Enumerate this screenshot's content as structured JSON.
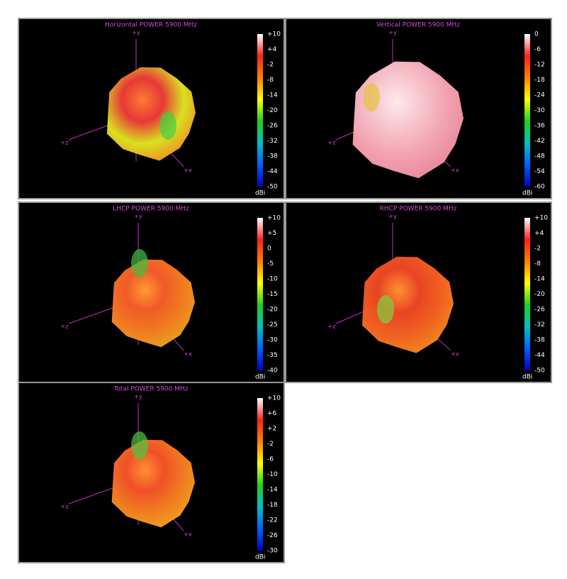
{
  "panels": [
    {
      "title": "Horizontal POWER 5900  MHz",
      "colorbar_ticks": [
        "+10",
        "+4",
        "-2",
        "-8",
        "-14",
        "-20",
        "-26",
        "-32",
        "-38",
        "-44",
        "-50"
      ],
      "unit": "dBi",
      "axes": {
        "y": "+y",
        "z": "+z",
        "x": "+x"
      }
    },
    {
      "title": "Vertical POWER 5900  MHz",
      "colorbar_ticks": [
        "0",
        "-6",
        "-12",
        "-18",
        "-24",
        "-30",
        "-36",
        "-42",
        "-48",
        "-54",
        "-60"
      ],
      "unit": "dBi",
      "axes": {
        "y": "+y",
        "z": "+z",
        "x": "+x"
      }
    },
    {
      "title": "LHCP POWER 5900  MHz",
      "colorbar_ticks": [
        "+10",
        "+5",
        "0",
        "-5",
        "-10",
        "-15",
        "-20",
        "-25",
        "-30",
        "-35",
        "-40"
      ],
      "unit": "dBi",
      "axes": {
        "y": "+y",
        "z": "+z",
        "x": "+x"
      }
    },
    {
      "title": "RHCP POWER 5900  MHz",
      "colorbar_ticks": [
        "+10",
        "+4",
        "-2",
        "-8",
        "-14",
        "-20",
        "-26",
        "-32",
        "-38",
        "-44",
        "-50"
      ],
      "unit": "dBi",
      "axes": {
        "y": "+y",
        "z": "+z",
        "x": "+x"
      }
    },
    {
      "title": "Total POWER 5900  MHz",
      "colorbar_ticks": [
        "+10",
        "+6",
        "+2",
        "-2",
        "-6",
        "-10",
        "-14",
        "-18",
        "-22",
        "-26",
        "-30"
      ],
      "unit": "dBi",
      "axes": {
        "y": "+y",
        "z": "+z",
        "x": "+x"
      }
    }
  ]
}
